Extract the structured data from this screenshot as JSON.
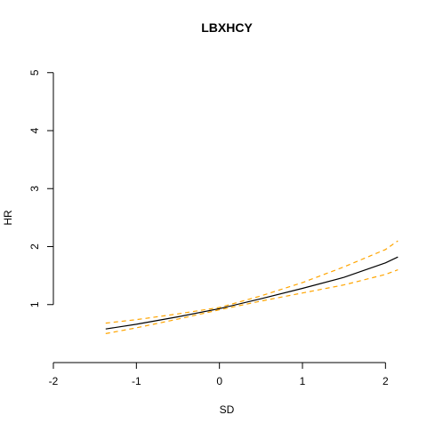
{
  "chart_data": {
    "type": "line",
    "title": "LBXHCY",
    "xlabel": "SD",
    "ylabel": "HR",
    "xlim": [
      -2,
      2.2
    ],
    "ylim": [
      0,
      5
    ],
    "x_ticks": [
      -2,
      -1,
      0,
      1,
      2
    ],
    "x_tick_labels": [
      "-2",
      "-1",
      "0",
      "1",
      "2"
    ],
    "y_ticks": [
      1,
      2,
      3,
      4,
      5
    ],
    "y_tick_labels": [
      "1",
      "2",
      "3",
      "4",
      "5"
    ],
    "grid": false,
    "legend": "none",
    "series": [
      {
        "role": "estimate",
        "color": "#000000",
        "line_style": "solid",
        "x": [
          -1.37,
          -1.0,
          -0.5,
          0.0,
          0.5,
          1.0,
          1.5,
          2.0,
          2.15
        ],
        "y": [
          0.58,
          0.66,
          0.79,
          0.93,
          1.1,
          1.28,
          1.47,
          1.72,
          1.82
        ]
      },
      {
        "role": "upper-bound",
        "color": "#FFA500",
        "line_style": "dashed",
        "x": [
          -1.37,
          -1.0,
          -0.5,
          0.0,
          0.5,
          1.0,
          1.5,
          2.0,
          2.15
        ],
        "y": [
          0.68,
          0.74,
          0.84,
          0.95,
          1.15,
          1.38,
          1.65,
          1.95,
          2.1
        ]
      },
      {
        "role": "lower-bound",
        "color": "#FFA500",
        "line_style": "dashed",
        "x": [
          -1.37,
          -1.0,
          -0.5,
          0.0,
          0.5,
          1.0,
          1.5,
          2.0,
          2.15
        ],
        "y": [
          0.5,
          0.6,
          0.75,
          0.91,
          1.06,
          1.2,
          1.34,
          1.52,
          1.6
        ]
      }
    ]
  }
}
